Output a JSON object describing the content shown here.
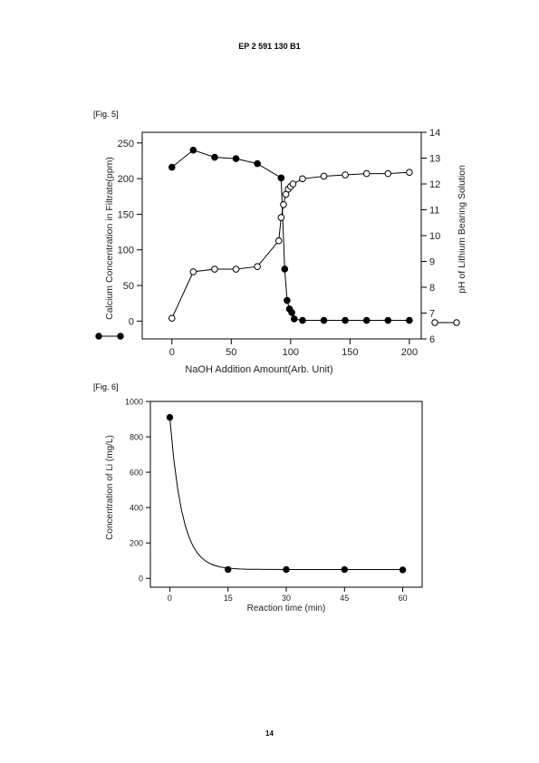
{
  "header": {
    "patent_number": "EP 2 591 130 B1"
  },
  "page_number": "14",
  "figures": [
    {
      "label": "[Fig. 5]"
    },
    {
      "label": "[Fig. 6]"
    }
  ],
  "chart_data": [
    {
      "type": "line",
      "xlabel": "NaOH Addition Amount(Arb. Unit)",
      "ylabel": "Calcium Concentration in Filtrate(ppm)",
      "y2label": "pH of Lithium Bearing Solution",
      "xlim": [
        -25,
        210
      ],
      "ylim": [
        -25,
        265
      ],
      "y2lim": [
        6,
        14
      ],
      "x_ticks": [
        0,
        50,
        100,
        150,
        200
      ],
      "y_ticks": [
        0,
        50,
        100,
        150,
        200,
        250
      ],
      "y2_ticks": [
        6,
        7,
        8,
        9,
        10,
        11,
        12,
        13,
        14
      ],
      "series": [
        {
          "marker": "filled-circle",
          "axis": "left",
          "x": [
            0,
            18,
            36,
            54,
            72,
            92,
            95,
            97,
            99,
            101,
            103,
            110,
            128,
            146,
            164,
            182,
            200
          ],
          "values": [
            216,
            240,
            230,
            228,
            221,
            201,
            73,
            29,
            17,
            12,
            3,
            1,
            1,
            1,
            1,
            1,
            1
          ]
        },
        {
          "marker": "open-circle",
          "axis": "right",
          "x": [
            0,
            18,
            36,
            54,
            72,
            90,
            92,
            94,
            96,
            98,
            100,
            102,
            110,
            128,
            146,
            164,
            182,
            200
          ],
          "values": [
            6.8,
            8.6,
            8.7,
            8.7,
            8.8,
            9.8,
            10.7,
            11.2,
            11.6,
            11.8,
            11.9,
            12.0,
            12.2,
            12.3,
            12.35,
            12.4,
            12.4,
            12.45
          ]
        }
      ]
    },
    {
      "type": "line",
      "xlabel": "Reaction time (min)",
      "ylabel": "Concentration of Li (mg/L)",
      "xlim": [
        -5,
        65
      ],
      "ylim": [
        -50,
        1000
      ],
      "x_ticks": [
        0,
        15,
        30,
        45,
        60
      ],
      "y_ticks": [
        0,
        200,
        400,
        600,
        800,
        1000
      ],
      "series": [
        {
          "marker": "filled-circle",
          "x": [
            0,
            15,
            30,
            45,
            60
          ],
          "values": [
            910,
            50,
            50,
            50,
            48
          ]
        }
      ]
    }
  ]
}
